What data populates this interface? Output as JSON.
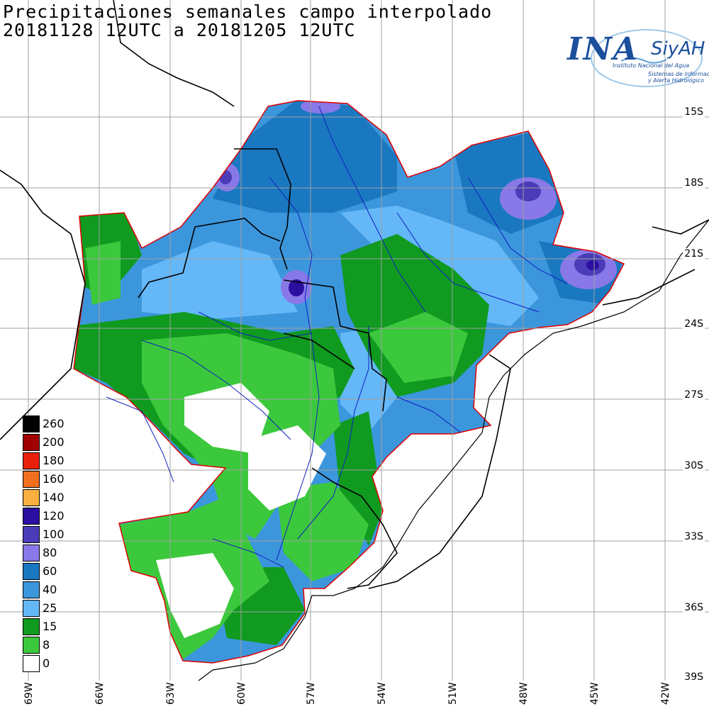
{
  "title": {
    "line1": "Precipitaciones semanales campo interpolado",
    "line2": "20181128 12UTC a 20181205 12UTC"
  },
  "logo": {
    "name": "INA",
    "system": "SiyAH",
    "org": "Instituto Nacional del Agua",
    "tagline1": "Sistemas de Información",
    "tagline2": "y Alerta Hidrológico"
  },
  "legend": [
    {
      "label": "260",
      "color": "#000000"
    },
    {
      "label": "200",
      "color": "#a00000"
    },
    {
      "label": "180",
      "color": "#e8200c"
    },
    {
      "label": "160",
      "color": "#f07020"
    },
    {
      "label": "140",
      "color": "#f8b040"
    },
    {
      "label": "120",
      "color": "#2a0fa0"
    },
    {
      "label": "100",
      "color": "#4a3cb8"
    },
    {
      "label": "80",
      "color": "#8878e8"
    },
    {
      "label": "60",
      "color": "#1a78c0"
    },
    {
      "label": "40",
      "color": "#3c96dc"
    },
    {
      "label": "25",
      "color": "#64b8f8"
    },
    {
      "label": "15",
      "color": "#109a20"
    },
    {
      "label": "8",
      "color": "#3cc83c"
    },
    {
      "label": "0",
      "color": "#ffffff"
    }
  ],
  "latitude_labels": [
    "15S",
    "18S",
    "21S",
    "24S",
    "27S",
    "30S",
    "33S",
    "36S",
    "39S"
  ],
  "longitude_labels": [
    "69W",
    "66W",
    "63W",
    "60W",
    "57W",
    "54W",
    "51W",
    "48W",
    "45W",
    "42W"
  ],
  "colors": {
    "basin_outline": "#e00000",
    "rivers": "#1020c0",
    "borders": "#000000",
    "grid": "#a0a0a0"
  }
}
